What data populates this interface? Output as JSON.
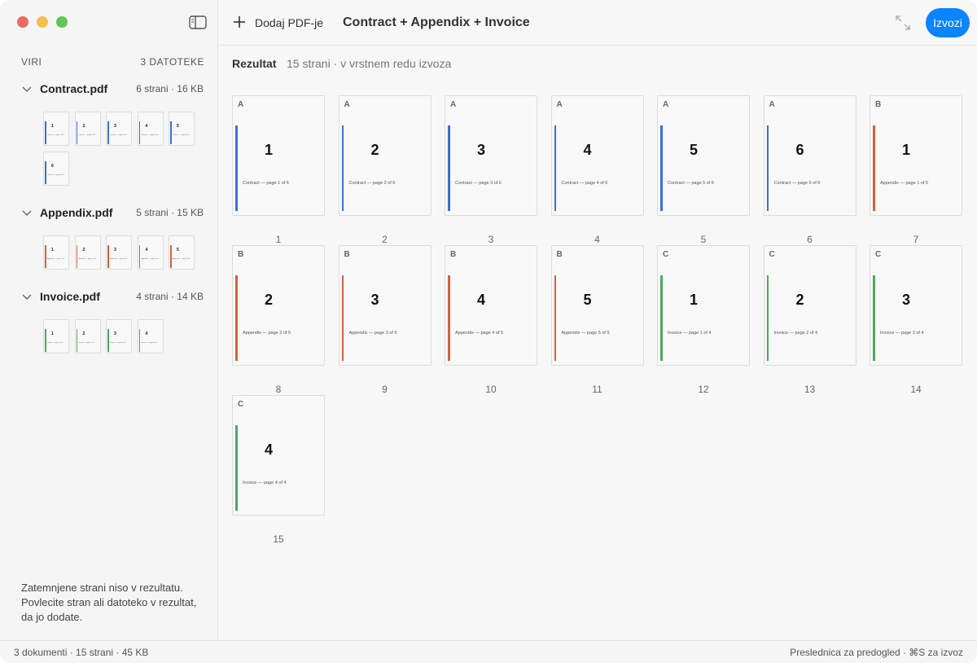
{
  "toolbar": {
    "add_button": "Dodaj PDF-je",
    "title": "Contract + Appendix + Invoice",
    "export_button": "Izvozi"
  },
  "sidebar": {
    "heading": "VIRI",
    "count": "3 DATOTEKE",
    "files": [
      {
        "name": "Contract.pdf",
        "meta": "6 strani · 16 KB",
        "color": "#3b6fd6",
        "pages": [
          {
            "number": "1",
            "caption": "Contract — page 1 of 6"
          },
          {
            "number": "2",
            "caption": "Contract — page 2 of 6"
          },
          {
            "number": "3",
            "caption": "Contract — page 3 of 6"
          },
          {
            "number": "4",
            "caption": "Contract — page 4 of 6"
          },
          {
            "number": "5",
            "caption": "Contract — page 5 of 6"
          },
          {
            "number": "6",
            "caption": "Contract — page 6 of 6"
          }
        ]
      },
      {
        "name": "Appendix.pdf",
        "meta": "5 strani · 15 KB",
        "color": "#d9603b",
        "pages": [
          {
            "number": "1",
            "caption": "Appendix — page 1 of 5"
          },
          {
            "number": "2",
            "caption": "Appendix — page 2 of 5"
          },
          {
            "number": "3",
            "caption": "Appendix — page 3 of 5"
          },
          {
            "number": "4",
            "caption": "Appendix — page 4 of 5"
          },
          {
            "number": "5",
            "caption": "Appendix — page 5 of 5"
          }
        ]
      },
      {
        "name": "Invoice.pdf",
        "meta": "4 strani · 14 KB",
        "color": "#4caa5e",
        "pages": [
          {
            "number": "1",
            "caption": "Invoice — page 1 of 4"
          },
          {
            "number": "2",
            "caption": "Invoice — page 2 of 4"
          },
          {
            "number": "3",
            "caption": "Invoice — page 3 of 4"
          },
          {
            "number": "4",
            "caption": "Invoice — page 4 of 4"
          }
        ]
      }
    ],
    "hint": "Zatemnjene strani niso v rezultatu. Povlecite stran ali datoteko v rezultat, da jo dodate."
  },
  "result": {
    "label": "Rezultat",
    "summary": "15 strani · v vrstnem redu izvoza",
    "pages": [
      {
        "source": "A",
        "number": "1",
        "caption": "Contract — page 1 of 6",
        "position": "1",
        "color": "#3b6fd6"
      },
      {
        "source": "A",
        "number": "2",
        "caption": "Contract — page 2 of 6",
        "position": "2",
        "color": "#3b6fd6"
      },
      {
        "source": "A",
        "number": "3",
        "caption": "Contract — page 3 of 6",
        "position": "3",
        "color": "#3b6fd6"
      },
      {
        "source": "A",
        "number": "4",
        "caption": "Contract — page 4 of 6",
        "position": "4",
        "color": "#3b6fd6"
      },
      {
        "source": "A",
        "number": "5",
        "caption": "Contract — page 5 of 6",
        "position": "5",
        "color": "#3b6fd6"
      },
      {
        "source": "A",
        "number": "6",
        "caption": "Contract — page 6 of 6",
        "position": "6",
        "color": "#3b6fd6"
      },
      {
        "source": "B",
        "number": "1",
        "caption": "Appendix — page 1 of 5",
        "position": "7",
        "color": "#d9603b"
      },
      {
        "source": "B",
        "number": "2",
        "caption": "Appendix — page 2 of 5",
        "position": "8",
        "color": "#d9603b"
      },
      {
        "source": "B",
        "number": "3",
        "caption": "Appendix — page 3 of 5",
        "position": "9",
        "color": "#d9603b"
      },
      {
        "source": "B",
        "number": "4",
        "caption": "Appendix — page 4 of 5",
        "position": "10",
        "color": "#d9603b"
      },
      {
        "source": "B",
        "number": "5",
        "caption": "Appendix — page 5 of 5",
        "position": "11",
        "color": "#d9603b"
      },
      {
        "source": "C",
        "number": "1",
        "caption": "Invoice — page 1 of 4",
        "position": "12",
        "color": "#4caa5e"
      },
      {
        "source": "C",
        "number": "2",
        "caption": "Invoice — page 2 of 4",
        "position": "13",
        "color": "#4caa5e"
      },
      {
        "source": "C",
        "number": "3",
        "caption": "Invoice — page 3 of 4",
        "position": "14",
        "color": "#4caa5e"
      },
      {
        "source": "C",
        "number": "4",
        "caption": "Invoice — page 4 of 4",
        "position": "15",
        "color": "#4caa5e"
      }
    ]
  },
  "status": {
    "left": "3 dokumenti · 15 strani · 45 KB",
    "right": "Preslednica za predogled · ⌘S za izvoz"
  }
}
